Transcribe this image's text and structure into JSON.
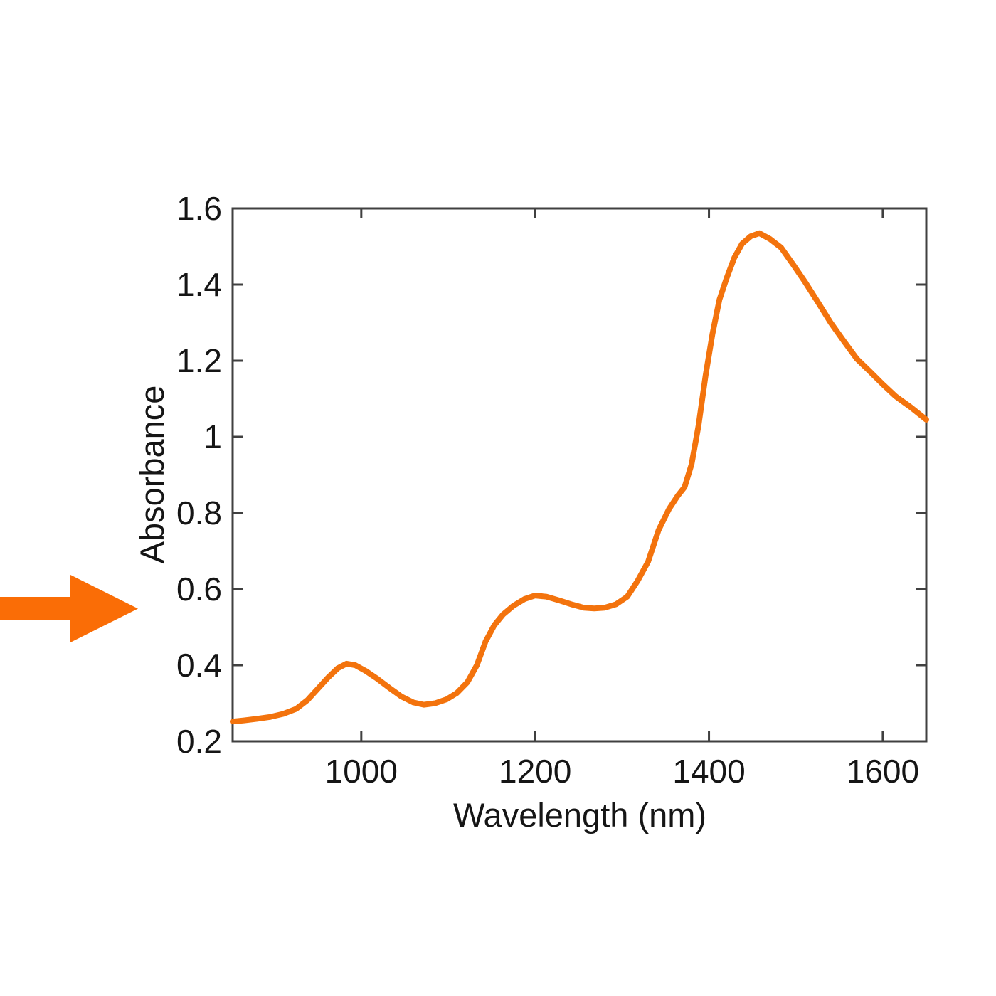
{
  "figure": {
    "background": "#ffffff",
    "axis_color": "#404040",
    "text_color": "#151515"
  },
  "annotation_arrow": {
    "color": "#FA6D06",
    "direction": "right",
    "points_at": "absorbance-curve"
  },
  "chart_data": {
    "type": "line",
    "title": "",
    "xlabel": "Wavelength (nm)",
    "ylabel": "Absorbance",
    "xlim": [
      852,
      1650
    ],
    "ylim": [
      0.2,
      1.6
    ],
    "xticks": [
      1000,
      1200,
      1400,
      1600
    ],
    "xtick_labels": [
      "1000",
      "1200",
      "1400",
      "1600"
    ],
    "yticks": [
      0.2,
      0.4,
      0.6,
      0.8,
      1.0,
      1.2,
      1.4,
      1.6
    ],
    "ytick_labels": [
      "0.2",
      "0.4",
      "0.6",
      "0.8",
      "1",
      "1.2",
      "1.4",
      "1.6"
    ],
    "grid": false,
    "legend": "none",
    "box": true,
    "tick_direction": "in",
    "line_color": "#F3730D",
    "line_width": 8,
    "series": [
      {
        "name": "absorbance-spectrum",
        "x": [
          852,
          865,
          880,
          895,
          910,
          925,
          938,
          950,
          962,
          973,
          983,
          993,
          1005,
          1018,
          1032,
          1046,
          1060,
          1072,
          1085,
          1098,
          1110,
          1122,
          1133,
          1143,
          1153,
          1163,
          1175,
          1188,
          1200,
          1213,
          1228,
          1243,
          1256,
          1268,
          1280,
          1293,
          1306,
          1318,
          1330,
          1342,
          1354,
          1364,
          1372,
          1380,
          1388,
          1396,
          1404,
          1412,
          1420,
          1429,
          1438,
          1448,
          1458,
          1470,
          1483,
          1497,
          1511,
          1525,
          1540,
          1555,
          1570,
          1585,
          1600,
          1615,
          1632,
          1650
        ],
        "y": [
          0.252,
          0.255,
          0.259,
          0.264,
          0.272,
          0.285,
          0.308,
          0.338,
          0.368,
          0.392,
          0.404,
          0.4,
          0.385,
          0.365,
          0.341,
          0.318,
          0.302,
          0.296,
          0.3,
          0.31,
          0.327,
          0.355,
          0.4,
          0.462,
          0.505,
          0.533,
          0.556,
          0.574,
          0.583,
          0.58,
          0.57,
          0.559,
          0.551,
          0.549,
          0.551,
          0.56,
          0.58,
          0.622,
          0.672,
          0.755,
          0.81,
          0.845,
          0.868,
          0.928,
          1.03,
          1.16,
          1.27,
          1.36,
          1.415,
          1.47,
          1.507,
          1.527,
          1.535,
          1.52,
          1.497,
          1.452,
          1.405,
          1.355,
          1.3,
          1.252,
          1.205,
          1.172,
          1.138,
          1.106,
          1.078,
          1.045
        ]
      }
    ]
  }
}
